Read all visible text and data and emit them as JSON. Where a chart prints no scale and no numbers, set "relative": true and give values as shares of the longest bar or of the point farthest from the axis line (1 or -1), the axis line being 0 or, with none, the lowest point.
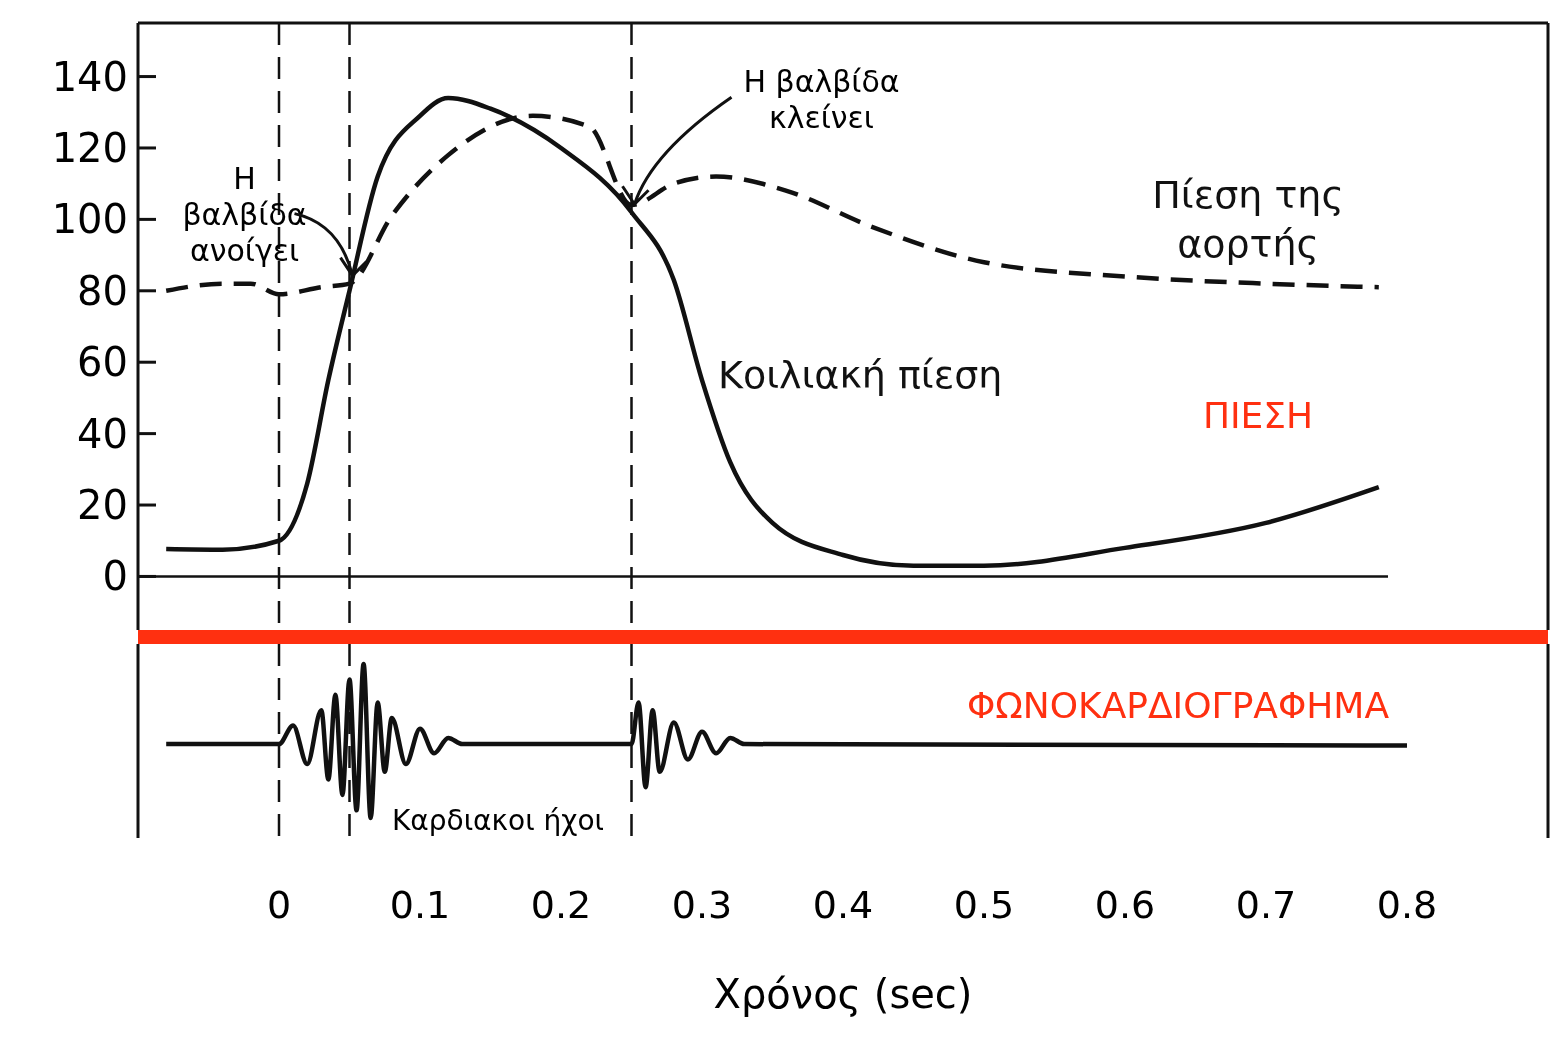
{
  "chart_data": [
    {
      "type": "line",
      "x": [
        -0.08,
        -0.04,
        0,
        0.02,
        0.035,
        0.05,
        0.07,
        0.1,
        0.12,
        0.15,
        0.2,
        0.25,
        0.28,
        0.3,
        0.32,
        0.35,
        0.4,
        0.45,
        0.5,
        0.6,
        0.7,
        0.78
      ],
      "series": [
        {
          "name": "Κοιλιακή πίεση",
          "color": "#111111",
          "line_style": "solid",
          "values": [
            7.7,
            7.5,
            10,
            26,
            55,
            80,
            112,
            129,
            134,
            131,
            120,
            102,
            83,
            55,
            32,
            15,
            6,
            3,
            3,
            8,
            15,
            25
          ]
        },
        {
          "name": "Πίεση της αορτής",
          "color": "#111111",
          "line_style": "dashed",
          "x": [
            -0.08,
            -0.04,
            -0.02,
            0,
            0.03,
            0.05,
            0.08,
            0.12,
            0.18,
            0.22,
            0.25,
            0.28,
            0.31,
            0.36,
            0.42,
            0.5,
            0.6,
            0.7,
            0.78
          ],
          "values": [
            80,
            82,
            82,
            79,
            81,
            82,
            101,
            118,
            129,
            126,
            104,
            110,
            112,
            108,
            98,
            88,
            84,
            82,
            81
          ]
        }
      ],
      "xlim": [
        -0.1,
        0.9
      ],
      "ylim": [
        -15,
        155
      ],
      "yticks": [
        0,
        20,
        40,
        60,
        80,
        100,
        120,
        140
      ],
      "tick_labels": "y",
      "ref_lines": [
        {
          "axis": "x",
          "value": 0,
          "line_style": "dashed"
        },
        {
          "axis": "x",
          "value": 0.05,
          "line_style": "dashed"
        },
        {
          "axis": "x",
          "value": 0.25,
          "line_style": "dashed"
        }
      ],
      "annotations": [
        {
          "text": "Η βαλβίδα ανοίγει",
          "x": 0.05,
          "y": 82
        },
        {
          "text": "Η βαλβίδα κλείνει",
          "x": 0.25,
          "y": 102
        },
        "ΠΙΕΣΗ"
      ]
    },
    {
      "type": "line",
      "relative": true,
      "x": [
        -0.08,
        0,
        0.01,
        0.02,
        0.03,
        0.035,
        0.04,
        0.045,
        0.05,
        0.055,
        0.06,
        0.065,
        0.07,
        0.075,
        0.08,
        0.09,
        0.1,
        0.11,
        0.12,
        0.13,
        0.25,
        0.255,
        0.26,
        0.265,
        0.27,
        0.28,
        0.29,
        0.3,
        0.31,
        0.32,
        0.33,
        0.8
      ],
      "series": [
        {
          "color": "#111111",
          "values": [
            0.48,
            0.48,
            0.6,
            0.35,
            0.7,
            0.25,
            0.8,
            0.15,
            0.9,
            0.05,
            1.0,
            0.0,
            0.75,
            0.3,
            0.65,
            0.35,
            0.58,
            0.42,
            0.52,
            0.48,
            0.48,
            0.75,
            0.2,
            0.7,
            0.3,
            0.62,
            0.38,
            0.56,
            0.42,
            0.52,
            0.48,
            0.47
          ]
        }
      ],
      "xlim": [
        -0.1,
        0.9
      ],
      "xticks": [
        0,
        0.1,
        0.2,
        0.3,
        0.4,
        0.5,
        0.6,
        0.7,
        0.8
      ],
      "xlabel": "Χρόνος (sec)",
      "tick_labels": "x",
      "ref_lines": [
        {
          "axis": "x",
          "value": 0,
          "line_style": "dashed"
        },
        {
          "axis": "x",
          "value": 0.05,
          "line_style": "dashed"
        },
        {
          "axis": "x",
          "value": 0.25,
          "line_style": "dashed"
        }
      ],
      "annotations": [
        "ΦΩΝΟΚΑΡΔΙΟΓΡΑΦΗΜΑ",
        "Καρδιακοι ήχοι"
      ]
    }
  ]
}
